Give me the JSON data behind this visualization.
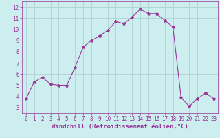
{
  "x": [
    0,
    1,
    2,
    3,
    4,
    5,
    6,
    7,
    8,
    9,
    10,
    11,
    12,
    13,
    14,
    15,
    16,
    17,
    18,
    19,
    20,
    21,
    22,
    23
  ],
  "y": [
    3.8,
    5.3,
    5.7,
    5.1,
    5.0,
    5.0,
    6.6,
    8.4,
    9.0,
    9.4,
    9.9,
    10.7,
    10.5,
    11.1,
    11.8,
    11.4,
    11.4,
    10.8,
    10.2,
    3.9,
    3.1,
    3.8,
    4.3,
    3.8
  ],
  "line_color": "#993399",
  "marker": "*",
  "marker_size": 3,
  "bg_color": "#cceeee",
  "grid_color": "#aacccc",
  "xlabel": "Windchill (Refroidissement éolien,°C)",
  "xlim": [
    -0.5,
    23.5
  ],
  "ylim": [
    2.5,
    12.5
  ],
  "yticks": [
    3,
    4,
    5,
    6,
    7,
    8,
    9,
    10,
    11,
    12
  ],
  "xticks": [
    0,
    1,
    2,
    3,
    4,
    5,
    6,
    7,
    8,
    9,
    10,
    11,
    12,
    13,
    14,
    15,
    16,
    17,
    18,
    19,
    20,
    21,
    22,
    23
  ],
  "tick_label_size": 5.5,
  "xlabel_size": 6.5,
  "tick_color": "#993399"
}
